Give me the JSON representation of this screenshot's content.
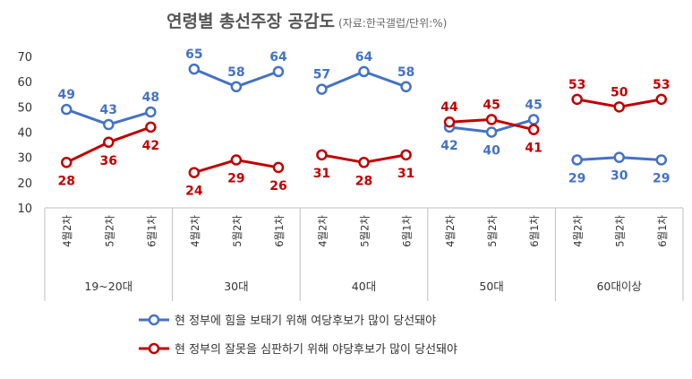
{
  "chart_data": {
    "type": "line",
    "title": "연령별 총선주장 공감도",
    "subtitle": "(자료:한국갤럽/단위:%)",
    "ylim": [
      10,
      70
    ],
    "yticks": [
      "10",
      "20",
      "30",
      "40",
      "50",
      "60",
      "70"
    ],
    "groups": [
      "19~20대",
      "30대",
      "40대",
      "50대",
      "60대이상"
    ],
    "categories": [
      "4월2차",
      "5월2차",
      "6월1차"
    ],
    "series": [
      {
        "name": "현 정부에 힘을 보태기 위해 여당후보가 많이 당선돼야",
        "color": "#4472C4",
        "values": [
          [
            49,
            43,
            48
          ],
          [
            65,
            58,
            64
          ],
          [
            57,
            64,
            58
          ],
          [
            42,
            40,
            45
          ],
          [
            29,
            30,
            29
          ]
        ],
        "labels": [
          [
            "49",
            "43",
            "48"
          ],
          [
            "65",
            "58",
            "64"
          ],
          [
            "57",
            "64",
            "58"
          ],
          [
            "42",
            "40",
            "45"
          ],
          [
            "29",
            "30",
            "29"
          ]
        ]
      },
      {
        "name": "현 정부의 잘못을 심판하기 위해 야당후보가 많이 당선돼야",
        "color": "#C00000",
        "values": [
          [
            28,
            36,
            42
          ],
          [
            24,
            29,
            26
          ],
          [
            31,
            28,
            31
          ],
          [
            44,
            45,
            41
          ],
          [
            53,
            50,
            53
          ]
        ],
        "labels": [
          [
            "28",
            "36",
            "42"
          ],
          [
            "24",
            "29",
            "26"
          ],
          [
            "31",
            "28",
            "31"
          ],
          [
            "44",
            "45",
            "41"
          ],
          [
            "53",
            "50",
            "53"
          ]
        ]
      }
    ]
  }
}
